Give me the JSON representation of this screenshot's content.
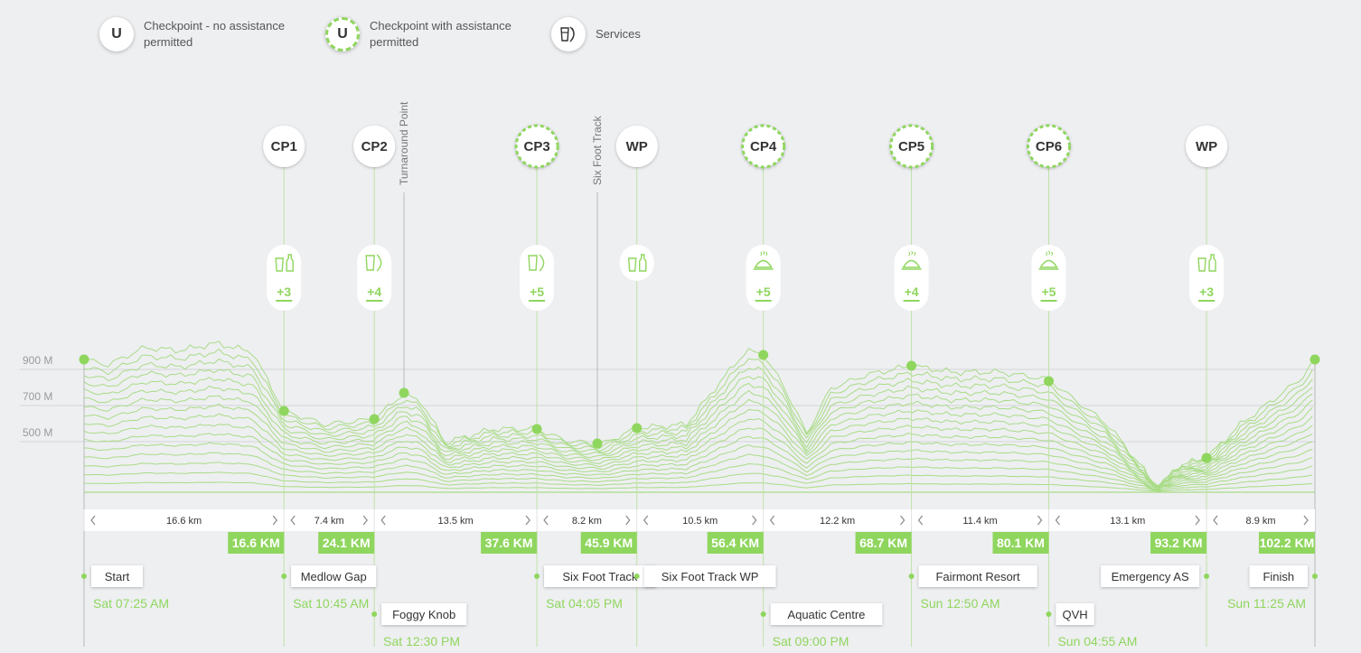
{
  "legend": [
    {
      "symbol": "U",
      "label": "Checkpoint - no assistance permitted",
      "style": "solid",
      "icon": "checkpoint-icon"
    },
    {
      "symbol": "U",
      "label": "Checkpoint with assistance permitted",
      "style": "dashed",
      "icon": "checkpoint-assist-icon"
    },
    {
      "symbol": "",
      "label": "Services",
      "icon": "services-icon"
    }
  ],
  "elevation_labels": [
    "900 M",
    "700 M",
    "500 M"
  ],
  "colors": {
    "accent": "#8fd65e",
    "line": "#a8dc86",
    "background": "#eeeff1"
  },
  "markers": [
    {
      "label": "CP1",
      "style": "solid",
      "km": 16.6,
      "services": "+3",
      "service_icon": "water-bottle-icon"
    },
    {
      "label": "CP2",
      "style": "solid",
      "km": 24.1,
      "services": "+4",
      "service_icon": "cup-banana-icon"
    },
    {
      "label": "CP3",
      "style": "dashed",
      "km": 37.6,
      "services": "+5",
      "service_icon": "cup-banana-icon"
    },
    {
      "label": "WP",
      "style": "solid",
      "km": 45.9,
      "services": "",
      "service_icon": "water-bottle-icon"
    },
    {
      "label": "CP4",
      "style": "dashed",
      "km": 56.4,
      "services": "+5",
      "service_icon": "hot-food-icon"
    },
    {
      "label": "CP5",
      "style": "dashed",
      "km": 68.7,
      "services": "+4",
      "service_icon": "hot-food-icon"
    },
    {
      "label": "CP6",
      "style": "dashed",
      "km": 80.1,
      "services": "+5",
      "service_icon": "hot-food-icon"
    },
    {
      "label": "WP",
      "style": "solid",
      "km": 93.2,
      "services": "+3",
      "service_icon": "water-bottle-icon"
    }
  ],
  "vertical_labels": [
    "Turnaround Point",
    "Six Foot Track"
  ],
  "segments": [
    "16.6 km",
    "7.4 km",
    "13.5 km",
    "8.2 km",
    "10.5 km",
    "12.2 km",
    "11.4 km",
    "13.1 km",
    "8.9 km"
  ],
  "cumulative": [
    "16.6 KM",
    "24.1 KM",
    "37.6 KM",
    "45.9 KM",
    "56.4 KM",
    "68.7 KM",
    "80.1 KM",
    "93.2 KM",
    "102.2 KM"
  ],
  "locations": [
    {
      "name": "Start",
      "time": "Sat 07:25 AM"
    },
    {
      "name": "Medlow Gap",
      "time": "Sat 10:45 AM"
    },
    {
      "name": "Foggy Knob",
      "time": "Sat 12:30 PM"
    },
    {
      "name": "Six Foot Track",
      "time": "Sat 04:05 PM"
    },
    {
      "name": "Six Foot Track WP",
      "time": ""
    },
    {
      "name": "Aquatic Centre",
      "time": "Sat 09:00 PM"
    },
    {
      "name": "Fairmont Resort",
      "time": "Sun 12:50 AM"
    },
    {
      "name": "QVH",
      "time": "Sun 04:55 AM"
    },
    {
      "name": "Emergency AS",
      "time": ""
    },
    {
      "name": "Finish",
      "time": "Sun 11:25 AM"
    }
  ]
}
